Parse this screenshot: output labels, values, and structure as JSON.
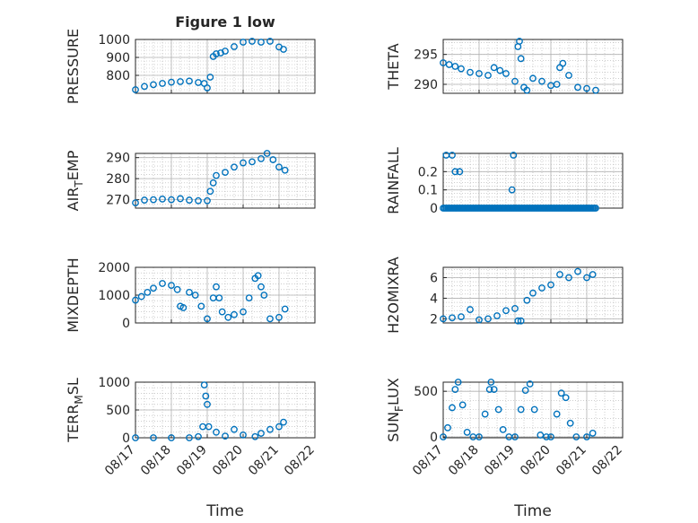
{
  "figure": {
    "title": "Figure 1 low",
    "xlabel": "Time"
  },
  "colors": {
    "marker": "#0072BD",
    "axis": "#262626",
    "grid": "#b0b0b0"
  },
  "chart_data": [
    {
      "type": "scatter",
      "ylabel": "PRESSURE",
      "ylabel_sub": "",
      "xlim": [
        "08/17 00:00",
        "08/22 00:00"
      ],
      "ylim": [
        700,
        1000
      ],
      "yticks": [
        800,
        900,
        1000
      ],
      "xticks": [
        "08/17",
        "08/18",
        "08/19",
        "08/20",
        "08/21",
        "08/22"
      ],
      "show_xticklabels": false,
      "grid": true,
      "x": [
        "08/17 00:00",
        "08/17 06:00",
        "08/17 12:00",
        "08/17 18:00",
        "08/18 00:00",
        "08/18 06:00",
        "08/18 12:00",
        "08/18 18:00",
        "08/18 22:00",
        "08/19 00:00",
        "08/19 02:00",
        "08/19 04:00",
        "08/19 06:00",
        "08/19 09:00",
        "08/19 12:00",
        "08/19 18:00",
        "08/20 00:00",
        "08/20 06:00",
        "08/20 12:00",
        "08/20 18:00",
        "08/21 00:00",
        "08/21 03:00"
      ],
      "y": [
        720,
        738,
        748,
        755,
        762,
        765,
        768,
        760,
        755,
        730,
        790,
        905,
        920,
        925,
        935,
        960,
        985,
        990,
        985,
        990,
        958,
        945
      ]
    },
    {
      "type": "scatter",
      "ylabel": "THETA",
      "ylabel_sub": "",
      "xlim": [
        "08/17 00:00",
        "08/22 00:00"
      ],
      "ylim": [
        288.5,
        297.5
      ],
      "yticks": [
        290,
        295
      ],
      "xticks": [
        "08/17",
        "08/18",
        "08/19",
        "08/20",
        "08/21",
        "08/22"
      ],
      "show_xticklabels": false,
      "grid": true,
      "x": [
        "08/17 00:00",
        "08/17 04:00",
        "08/17 08:00",
        "08/17 12:00",
        "08/17 18:00",
        "08/18 00:00",
        "08/18 06:00",
        "08/18 10:00",
        "08/18 14:00",
        "08/18 18:00",
        "08/19 00:00",
        "08/19 02:00",
        "08/19 03:00",
        "08/19 04:00",
        "08/19 06:00",
        "08/19 08:00",
        "08/19 12:00",
        "08/19 18:00",
        "08/20 00:00",
        "08/20 04:00",
        "08/20 06:00",
        "08/20 08:00",
        "08/20 12:00",
        "08/20 18:00",
        "08/21 00:00",
        "08/21 06:00"
      ],
      "y": [
        293.6,
        293.3,
        293.0,
        292.6,
        292.0,
        291.8,
        291.5,
        292.8,
        292.3,
        291.8,
        290.5,
        296.3,
        297.2,
        294.3,
        289.5,
        289.0,
        291.0,
        290.5,
        289.8,
        290.0,
        292.8,
        293.5,
        291.5,
        289.5,
        289.3,
        289.0
      ]
    },
    {
      "type": "scatter",
      "ylabel": "AIR",
      "ylabel_sub": "T",
      "ylabel_after": "EMP",
      "xlim": [
        "08/17 00:00",
        "08/22 00:00"
      ],
      "ylim": [
        266,
        292
      ],
      "yticks": [
        270,
        280,
        290
      ],
      "xticks": [
        "08/17",
        "08/18",
        "08/19",
        "08/20",
        "08/21",
        "08/22"
      ],
      "show_xticklabels": false,
      "grid": true,
      "x": [
        "08/17 00:00",
        "08/17 06:00",
        "08/17 12:00",
        "08/17 18:00",
        "08/18 00:00",
        "08/18 06:00",
        "08/18 12:00",
        "08/18 18:00",
        "08/19 00:00",
        "08/19 02:00",
        "08/19 04:00",
        "08/19 06:00",
        "08/19 12:00",
        "08/19 18:00",
        "08/20 00:00",
        "08/20 06:00",
        "08/20 12:00",
        "08/20 16:00",
        "08/20 20:00",
        "08/21 00:00",
        "08/21 04:00"
      ],
      "y": [
        268.5,
        269.8,
        270.0,
        270.3,
        270.0,
        270.5,
        269.8,
        269.5,
        269.5,
        274.0,
        278.0,
        281.5,
        283.0,
        285.5,
        287.5,
        288.0,
        289.5,
        292.0,
        289.0,
        285.5,
        284.0
      ]
    },
    {
      "type": "scatter",
      "ylabel": "RAINFALL",
      "ylabel_sub": "",
      "xlim": [
        "08/17 00:00",
        "08/22 00:00"
      ],
      "ylim": [
        0,
        0.3
      ],
      "yticks": [
        0,
        0.1,
        0.2
      ],
      "xticks": [
        "08/17",
        "08/18",
        "08/19",
        "08/20",
        "08/21",
        "08/22"
      ],
      "show_xticklabels": false,
      "grid": true,
      "x": [
        "08/17 02:00",
        "08/17 06:00",
        "08/17 08:00",
        "08/17 11:00",
        "08/18 22:00",
        "08/18 23:00"
      ],
      "y": [
        0.29,
        0.29,
        0.2,
        0.2,
        0.1,
        0.29
      ],
      "zero_line": [
        "08/17 00:00",
        "08/21 06:00"
      ]
    },
    {
      "type": "scatter",
      "ylabel": "MIXDEPTH",
      "ylabel_sub": "",
      "xlim": [
        "08/17 00:00",
        "08/22 00:00"
      ],
      "ylim": [
        0,
        2000
      ],
      "yticks": [
        0,
        1000,
        2000
      ],
      "xticks": [
        "08/17",
        "08/18",
        "08/19",
        "08/20",
        "08/21",
        "08/22"
      ],
      "show_xticklabels": false,
      "grid": true,
      "x": [
        "08/17 00:00",
        "08/17 04:00",
        "08/17 08:00",
        "08/17 12:00",
        "08/17 18:00",
        "08/18 00:00",
        "08/18 04:00",
        "08/18 06:00",
        "08/18 08:00",
        "08/18 12:00",
        "08/18 16:00",
        "08/18 20:00",
        "08/19 00:00",
        "08/19 04:00",
        "08/19 06:00",
        "08/19 08:00",
        "08/19 10:00",
        "08/19 14:00",
        "08/19 18:00",
        "08/20 00:00",
        "08/20 04:00",
        "08/20 08:00",
        "08/20 10:00",
        "08/20 12:00",
        "08/20 14:00",
        "08/20 18:00",
        "08/21 00:00",
        "08/21 04:00"
      ],
      "y": [
        820,
        950,
        1100,
        1250,
        1420,
        1350,
        1200,
        600,
        550,
        1100,
        1000,
        600,
        150,
        900,
        1300,
        900,
        400,
        200,
        300,
        400,
        900,
        1600,
        1700,
        1300,
        1000,
        150,
        200,
        500
      ]
    },
    {
      "type": "scatter",
      "ylabel": "H2OMIXRA",
      "ylabel_sub": "",
      "xlim": [
        "08/17 00:00",
        "08/22 00:00"
      ],
      "ylim": [
        1.6,
        7
      ],
      "yticks": [
        2,
        4,
        6
      ],
      "xticks": [
        "08/17",
        "08/18",
        "08/19",
        "08/20",
        "08/21",
        "08/22"
      ],
      "show_xticklabels": false,
      "grid": true,
      "x": [
        "08/17 00:00",
        "08/17 06:00",
        "08/17 12:00",
        "08/17 18:00",
        "08/18 00:00",
        "08/18 06:00",
        "08/18 12:00",
        "08/18 18:00",
        "08/19 00:00",
        "08/19 02:00",
        "08/19 04:00",
        "08/19 08:00",
        "08/19 12:00",
        "08/19 18:00",
        "08/20 00:00",
        "08/20 06:00",
        "08/20 12:00",
        "08/20 18:00",
        "08/21 00:00",
        "08/21 04:00"
      ],
      "y": [
        2.0,
        2.1,
        2.2,
        2.9,
        1.9,
        2.0,
        2.3,
        2.8,
        3.0,
        1.8,
        1.8,
        3.8,
        4.5,
        5.0,
        5.3,
        6.3,
        6.0,
        6.6,
        6.0,
        6.3
      ]
    },
    {
      "type": "scatter",
      "ylabel": "TERR",
      "ylabel_sub": "M",
      "ylabel_after": "SL",
      "xlim": [
        "08/17 00:00",
        "08/22 00:00"
      ],
      "ylim": [
        0,
        1000
      ],
      "yticks": [
        0,
        500,
        1000
      ],
      "xticks": [
        "08/17",
        "08/18",
        "08/19",
        "08/20",
        "08/21",
        "08/22"
      ],
      "show_xticklabels": true,
      "grid": true,
      "x": [
        "08/17 00:00",
        "08/17 12:00",
        "08/18 00:00",
        "08/18 12:00",
        "08/18 18:00",
        "08/18 21:00",
        "08/18 22:00",
        "08/18 23:00",
        "08/19 00:00",
        "08/19 01:00",
        "08/19 06:00",
        "08/19 12:00",
        "08/19 18:00",
        "08/20 00:00",
        "08/20 08:00",
        "08/20 12:00",
        "08/20 18:00",
        "08/21 00:00",
        "08/21 03:00"
      ],
      "y": [
        0,
        0,
        0,
        0,
        20,
        200,
        950,
        750,
        600,
        200,
        100,
        30,
        150,
        50,
        20,
        80,
        150,
        200,
        280
      ]
    },
    {
      "type": "scatter",
      "ylabel": "SUN",
      "ylabel_sub": "F",
      "ylabel_after": "LUX",
      "xlim": [
        "08/17 00:00",
        "08/22 00:00"
      ],
      "ylim": [
        -10,
        600
      ],
      "yticks": [
        0,
        500
      ],
      "xticks": [
        "08/17",
        "08/18",
        "08/19",
        "08/20",
        "08/21",
        "08/22"
      ],
      "show_xticklabels": true,
      "grid": true,
      "x": [
        "08/17 00:00",
        "08/17 03:00",
        "08/17 06:00",
        "08/17 08:00",
        "08/17 10:00",
        "08/17 13:00",
        "08/17 16:00",
        "08/17 20:00",
        "08/18 00:00",
        "08/18 04:00",
        "08/18 07:00",
        "08/18 08:00",
        "08/18 10:00",
        "08/18 13:00",
        "08/18 16:00",
        "08/18 20:00",
        "08/19 00:00",
        "08/19 04:00",
        "08/19 07:00",
        "08/19 10:00",
        "08/19 13:00",
        "08/19 17:00",
        "08/19 21:00",
        "08/20 00:00",
        "08/20 04:00",
        "08/20 07:00",
        "08/20 10:00",
        "08/20 13:00",
        "08/20 17:00",
        "08/21 00:00",
        "08/21 04:00"
      ],
      "y": [
        0,
        100,
        320,
        520,
        600,
        350,
        50,
        0,
        0,
        250,
        520,
        600,
        520,
        300,
        80,
        0,
        0,
        300,
        510,
        580,
        300,
        20,
        0,
        0,
        250,
        480,
        430,
        150,
        0,
        0,
        40
      ]
    }
  ]
}
